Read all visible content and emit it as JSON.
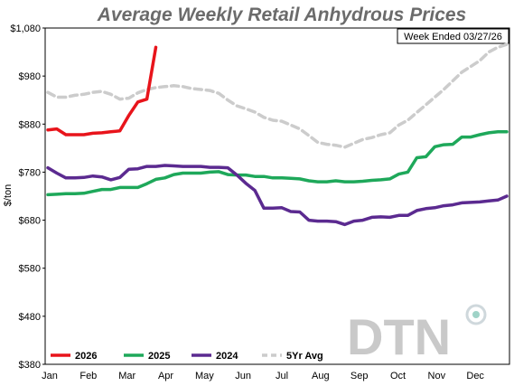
{
  "chart_data": {
    "type": "line",
    "title": "Average Weekly Retail Anhydrous Prices",
    "annotation": "Week Ended 03/27/26",
    "ylabel": "$/ton",
    "xlabel": "",
    "ylim": [
      380,
      1080
    ],
    "y_ticks": [
      "$1,080",
      "$980",
      "$880",
      "$780",
      "$680",
      "$580",
      "$480",
      "$380"
    ],
    "x_ticks": [
      "Jan",
      "Feb",
      "Mar",
      "Apr",
      "May",
      "Jun",
      "Jul",
      "Aug",
      "Sep",
      "Oct",
      "Nov",
      "Dec"
    ],
    "x_unit": "week of year (1-52)",
    "legend_position": "bottom-left",
    "series": [
      {
        "name": "2026",
        "color": "#e8141b",
        "dash": "solid",
        "x": [
          1,
          2,
          3,
          4,
          5,
          6,
          7,
          8,
          9,
          10,
          11,
          12,
          13
        ],
        "y": [
          868,
          870,
          858,
          858,
          858,
          861,
          862,
          864,
          866,
          898,
          926,
          932,
          1040
        ]
      },
      {
        "name": "2025",
        "color": "#1ea85a",
        "dash": "solid",
        "x": [
          1,
          2,
          3,
          4,
          5,
          6,
          7,
          8,
          9,
          10,
          11,
          12,
          13,
          14,
          15,
          16,
          17,
          18,
          19,
          20,
          21,
          22,
          23,
          24,
          25,
          26,
          27,
          28,
          29,
          30,
          31,
          32,
          33,
          34,
          35,
          36,
          37,
          38,
          39,
          40,
          41,
          42,
          43,
          44,
          45,
          46,
          47,
          48,
          49,
          50,
          51,
          52
        ],
        "y": [
          733,
          734,
          735,
          735,
          736,
          740,
          744,
          744,
          748,
          748,
          748,
          756,
          765,
          768,
          775,
          778,
          778,
          778,
          780,
          781,
          775,
          774,
          774,
          771,
          771,
          768,
          768,
          767,
          766,
          762,
          760,
          760,
          762,
          760,
          760,
          761,
          763,
          764,
          766,
          776,
          780,
          810,
          812,
          833,
          837,
          838,
          853,
          853,
          858,
          862,
          864,
          864
        ]
      },
      {
        "name": "2024",
        "color": "#5b2a90",
        "dash": "solid",
        "x": [
          1,
          2,
          3,
          4,
          5,
          6,
          7,
          8,
          9,
          10,
          11,
          12,
          13,
          14,
          15,
          16,
          17,
          18,
          19,
          20,
          21,
          22,
          23,
          24,
          25,
          26,
          27,
          28,
          29,
          30,
          31,
          32,
          33,
          34,
          35,
          36,
          37,
          38,
          39,
          40,
          41,
          42,
          43,
          44,
          45,
          46,
          47,
          48,
          49,
          50,
          51,
          52
        ],
        "y": [
          789,
          778,
          768,
          768,
          769,
          772,
          770,
          764,
          769,
          786,
          787,
          792,
          792,
          794,
          793,
          792,
          792,
          792,
          790,
          790,
          789,
          774,
          757,
          742,
          705,
          705,
          706,
          698,
          697,
          680,
          678,
          678,
          677,
          671,
          678,
          680,
          686,
          687,
          686,
          690,
          690,
          700,
          704,
          706,
          710,
          712,
          716,
          717,
          718,
          720,
          722,
          730
        ]
      },
      {
        "name": "5Yr Avg",
        "color": "#cccccc",
        "dash": "dashed",
        "x": [
          1,
          2,
          3,
          4,
          5,
          6,
          7,
          8,
          9,
          10,
          11,
          12,
          13,
          14,
          15,
          16,
          17,
          18,
          19,
          20,
          21,
          22,
          23,
          24,
          25,
          26,
          27,
          28,
          29,
          30,
          31,
          32,
          33,
          34,
          35,
          36,
          37,
          38,
          39,
          40,
          41,
          42,
          43,
          44,
          45,
          46,
          47,
          48,
          49,
          50,
          51,
          52
        ],
        "y": [
          946,
          936,
          936,
          940,
          942,
          946,
          948,
          942,
          932,
          934,
          945,
          952,
          956,
          958,
          960,
          958,
          954,
          952,
          950,
          944,
          930,
          918,
          912,
          905,
          894,
          888,
          886,
          878,
          870,
          856,
          842,
          838,
          836,
          832,
          840,
          848,
          852,
          858,
          862,
          878,
          888,
          904,
          920,
          936,
          952,
          970,
          988,
          1000,
          1012,
          1030,
          1040,
          1046
        ]
      }
    ]
  },
  "logo": {
    "text": "DTN",
    "color": "#c9c9c9"
  }
}
